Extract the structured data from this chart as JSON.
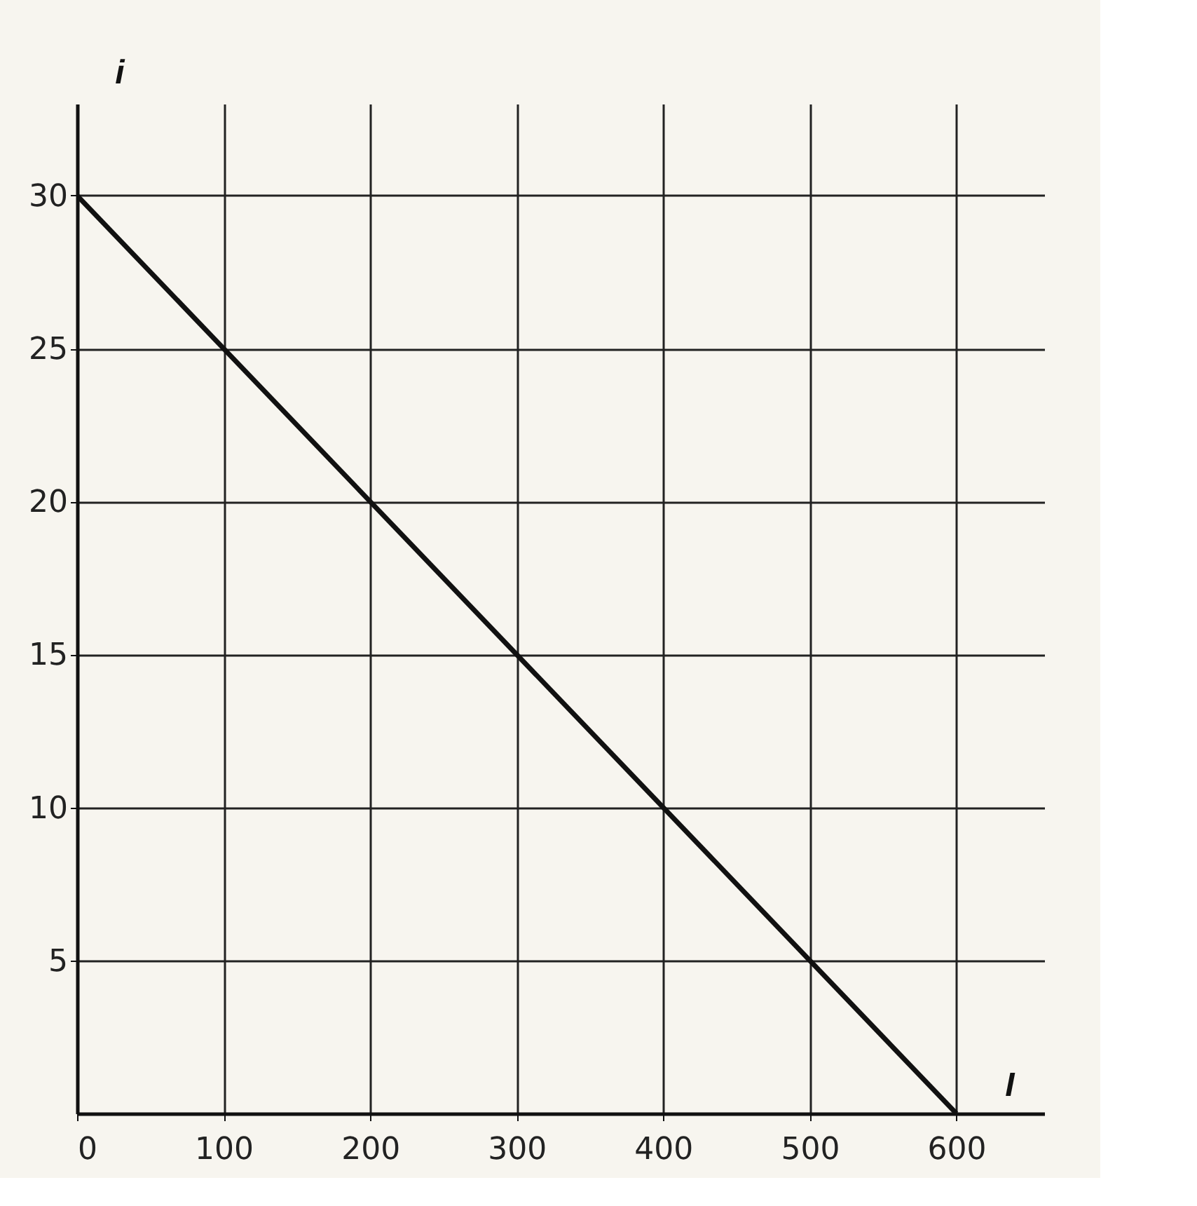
{
  "chart_data": {
    "type": "line",
    "xlabel": "I",
    "ylabel": "i",
    "x": [
      0,
      600
    ],
    "series": [
      {
        "color": "#111111",
        "values": [
          30,
          0
        ]
      }
    ],
    "xlim": [
      0,
      660
    ],
    "ylim": [
      0,
      33
    ],
    "xticks": [
      0,
      100,
      200,
      300,
      400,
      500,
      600
    ],
    "yticks": [
      5,
      10,
      15,
      20,
      25,
      30
    ],
    "grid": true,
    "marker": "none",
    "line_style": "solid"
  }
}
